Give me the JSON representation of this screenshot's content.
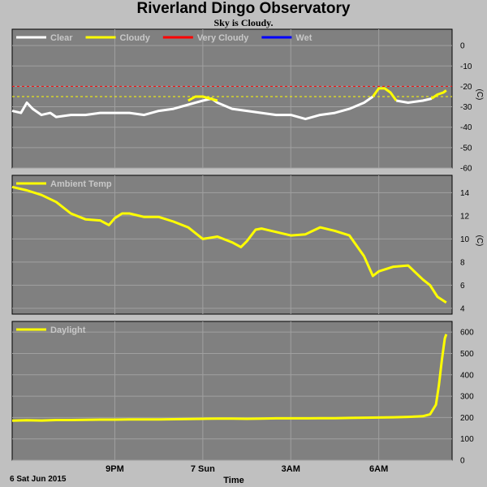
{
  "header": {
    "title": "Riverland Dingo Observatory",
    "subtitle": "Sky is Cloudy."
  },
  "footer": {
    "date_label": "6 Sat Jun 2015",
    "time_label": "Time"
  },
  "colors": {
    "panel_bg": "#808080",
    "grid": "#a0a0a0",
    "clear": "#ffffff",
    "cloudy": "#ffff00",
    "very_cloudy": "#ff0000",
    "wet": "#0000ff"
  },
  "chart_data": [
    {
      "type": "line",
      "name": "sky",
      "ylabel": "(C)",
      "ylim": [
        -60,
        8
      ],
      "yticks": [
        0,
        -10,
        -20,
        -30,
        -40,
        -50,
        -60
      ],
      "grid": true,
      "legend": [
        {
          "name": "Clear",
          "color": "#ffffff"
        },
        {
          "name": "Cloudy",
          "color": "#ffff00"
        },
        {
          "name": "Very Cloudy",
          "color": "#ff0000"
        },
        {
          "name": "Wet",
          "color": "#0000ff"
        }
      ],
      "thresholds": [
        {
          "name": "Very Cloudy",
          "value": -20,
          "color": "#ff0000"
        },
        {
          "name": "Cloudy",
          "value": -25,
          "color": "#ffff00"
        }
      ],
      "series": [
        {
          "name": "Clear",
          "color": "#ffffff",
          "x": [
            17.5,
            17.8,
            18.0,
            18.2,
            18.5,
            18.8,
            19.0,
            19.5,
            20.0,
            20.5,
            21.0,
            21.5,
            22.0,
            22.5,
            23.0,
            23.5,
            24.0,
            24.3,
            24.5,
            25.0,
            25.5,
            26.0,
            26.5,
            27.0,
            27.5,
            28.0,
            28.5,
            29.0,
            29.5,
            29.8
          ],
          "y": [
            -32,
            -33,
            -28,
            -31,
            -34,
            -33,
            -35,
            -34,
            -34,
            -33,
            -33,
            -33,
            -34,
            -32,
            -31,
            -29,
            -27,
            -26,
            -28,
            -31,
            -32,
            -33,
            -34,
            -34,
            -36,
            -34,
            -33,
            -31,
            -28,
            -25
          ]
        },
        {
          "name": "Cloudy",
          "color": "#ffff00",
          "x": [
            23.5,
            23.75,
            24.0,
            24.25,
            24.5
          ],
          "y": [
            -27,
            -25,
            -25,
            -26,
            -27
          ]
        },
        {
          "name": "Cloudy",
          "color": "#ffff00",
          "x": [
            29.8,
            30.0,
            30.2,
            30.4,
            30.6
          ],
          "y": [
            -25,
            -21,
            -21,
            -23,
            -27
          ]
        },
        {
          "name": "Clear",
          "color": "#ffffff",
          "x": [
            30.6,
            31.0,
            31.5,
            31.8
          ],
          "y": [
            -27,
            -28,
            -27,
            -26
          ]
        },
        {
          "name": "Cloudy",
          "color": "#ffff00",
          "x": [
            31.8,
            32.0,
            32.2,
            32.3
          ],
          "y": [
            -26,
            -24,
            -23,
            -22
          ]
        }
      ]
    },
    {
      "type": "line",
      "name": "ambient",
      "ylabel": "(C)",
      "ylim": [
        3.5,
        15.5
      ],
      "yticks": [
        14,
        12,
        10,
        8,
        6,
        4
      ],
      "grid": true,
      "legend": [
        {
          "name": "Ambient Temp",
          "color": "#ffff00"
        }
      ],
      "series": [
        {
          "name": "Ambient Temp",
          "color": "#ffff00",
          "x": [
            17.5,
            18.0,
            18.5,
            19.0,
            19.5,
            20.0,
            20.5,
            20.8,
            21.0,
            21.25,
            21.5,
            22.0,
            22.5,
            23.0,
            23.5,
            24.0,
            24.5,
            25.0,
            25.3,
            25.5,
            25.8,
            26.0,
            26.5,
            27.0,
            27.5,
            28.0,
            28.5,
            29.0,
            29.5,
            29.8,
            30.0,
            30.5,
            31.0,
            31.5,
            31.75,
            32.0,
            32.3
          ],
          "y": [
            14.5,
            14.2,
            13.8,
            13.2,
            12.2,
            11.7,
            11.6,
            11.2,
            11.8,
            12.2,
            12.2,
            11.9,
            11.9,
            11.5,
            11.0,
            10.0,
            10.2,
            9.7,
            9.3,
            9.8,
            10.8,
            10.9,
            10.6,
            10.3,
            10.4,
            11.0,
            10.7,
            10.3,
            8.5,
            6.8,
            7.2,
            7.6,
            7.7,
            6.5,
            6.0,
            5.0,
            4.5
          ]
        }
      ]
    },
    {
      "type": "line",
      "name": "daylight",
      "ylim": [
        0,
        650
      ],
      "yticks": [
        600,
        500,
        400,
        300,
        200,
        100,
        0
      ],
      "grid": true,
      "legend": [
        {
          "name": "Daylight",
          "color": "#ffff00"
        }
      ],
      "series": [
        {
          "name": "Daylight",
          "color": "#ffff00",
          "x": [
            17.5,
            18.0,
            18.5,
            19.0,
            19.5,
            20.0,
            20.5,
            21.0,
            21.5,
            22.0,
            22.5,
            23.0,
            23.5,
            24.0,
            24.5,
            25.0,
            25.5,
            26.0,
            26.5,
            27.0,
            27.5,
            28.0,
            28.5,
            29.0,
            29.5,
            30.0,
            30.5,
            31.0,
            31.5,
            31.75,
            31.95,
            32.05,
            32.15,
            32.25,
            32.3
          ],
          "y": [
            185,
            187,
            186,
            188,
            188,
            189,
            190,
            190,
            191,
            191,
            191,
            192,
            193,
            194,
            195,
            195,
            194,
            195,
            196,
            196,
            196,
            197,
            197,
            198,
            199,
            200,
            201,
            203,
            206,
            215,
            260,
            350,
            470,
            570,
            590
          ]
        }
      ]
    }
  ],
  "x_axis": {
    "xlim": [
      17.5,
      32.5
    ],
    "ticks": [
      {
        "value": 21,
        "label": "9PM"
      },
      {
        "value": 24,
        "label": "7 Sun"
      },
      {
        "value": 27,
        "label": "3AM"
      },
      {
        "value": 30,
        "label": "6AM"
      }
    ]
  }
}
